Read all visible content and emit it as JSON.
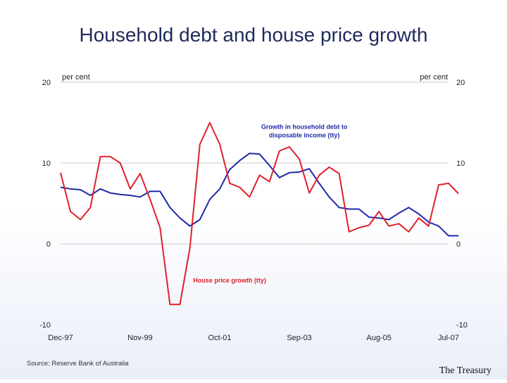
{
  "slide": {
    "title": "Household debt and house price growth",
    "source": "Source: Reserve Bank of Australia",
    "brand": "The Treasury"
  },
  "chart_data": {
    "type": "line",
    "title": "Household debt and house price growth",
    "ylabel_left": "per cent",
    "ylabel_right": "per cent",
    "ylim": [
      -10,
      20
    ],
    "yticks": [
      -10,
      0,
      10,
      20
    ],
    "xlim": [
      0,
      39
    ],
    "xtick_labels": [
      {
        "x": 0,
        "label": "Dec-97"
      },
      {
        "x": 8,
        "label": "Nov-99"
      },
      {
        "x": 16,
        "label": "Oct-01"
      },
      {
        "x": 24,
        "label": "Sep-03"
      },
      {
        "x": 32,
        "label": "Aug-05"
      },
      {
        "x": 39,
        "label": "Jul-07"
      }
    ],
    "grid": true,
    "series": [
      {
        "name": "Growth in household debt to disposable income (tty)",
        "color": "#1f2aa8",
        "label_at": {
          "x": 24.5,
          "y": 14.2
        },
        "values": [
          7.0,
          6.8,
          6.7,
          6.0,
          6.8,
          6.3,
          6.1,
          6.0,
          5.8,
          6.5,
          6.5,
          4.5,
          3.2,
          2.2,
          3.0,
          5.5,
          6.8,
          9.2,
          10.3,
          11.2,
          11.1,
          9.7,
          8.2,
          8.8,
          8.9,
          9.3,
          7.5,
          5.8,
          4.5,
          4.3,
          4.3,
          3.3,
          3.2,
          3.0,
          3.8,
          4.5,
          3.7,
          2.7,
          2.2,
          1.0,
          1.0
        ]
      },
      {
        "name": "House price growth (tty)",
        "color": "#e0202a",
        "label_at": {
          "x": 17,
          "y": -4.8
        },
        "values": [
          8.8,
          4.0,
          3.0,
          4.5,
          10.8,
          10.8,
          10.0,
          6.8,
          8.7,
          5.5,
          2.0,
          -7.5,
          -7.5,
          -0.5,
          12.3,
          15.0,
          12.3,
          7.5,
          7.0,
          5.8,
          8.5,
          7.7,
          11.5,
          12.0,
          10.5,
          6.3,
          8.5,
          9.5,
          8.7,
          1.5,
          2.0,
          2.3,
          4.0,
          2.2,
          2.5,
          1.5,
          3.2,
          2.2,
          7.3,
          7.5,
          6.2
        ]
      }
    ]
  }
}
